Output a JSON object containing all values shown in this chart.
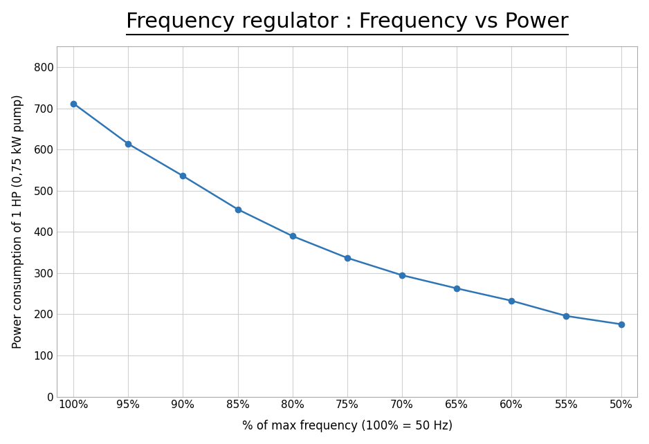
{
  "title": "Frequency regulator : Frequency vs Power",
  "xlabel": "% of max frequency (100% = 50 Hz)",
  "ylabel": "Power consumption of 1 HP (0,75 kW pump)",
  "x_labels": [
    "100%",
    "95%",
    "90%",
    "85%",
    "80%",
    "75%",
    "70%",
    "65%",
    "60%",
    "55%",
    "50%"
  ],
  "x_values": [
    0,
    1,
    2,
    3,
    4,
    5,
    6,
    7,
    8,
    9,
    10
  ],
  "y_values": [
    712,
    614,
    536,
    455,
    390,
    337,
    295,
    263,
    233,
    196,
    176
  ],
  "ylim": [
    0,
    850
  ],
  "yticks": [
    0,
    100,
    200,
    300,
    400,
    500,
    600,
    700,
    800
  ],
  "line_color": "#2E75B6",
  "marker": "o",
  "marker_color": "#2E75B6",
  "marker_size": 6,
  "line_width": 1.8,
  "title_fontsize": 22,
  "title_fontweight": "normal",
  "axis_label_fontsize": 12,
  "tick_fontsize": 11,
  "grid_color": "#D0D0D0",
  "spine_color": "#AAAAAA",
  "background_color": "#FFFFFF",
  "title_font": "DejaVu Sans"
}
